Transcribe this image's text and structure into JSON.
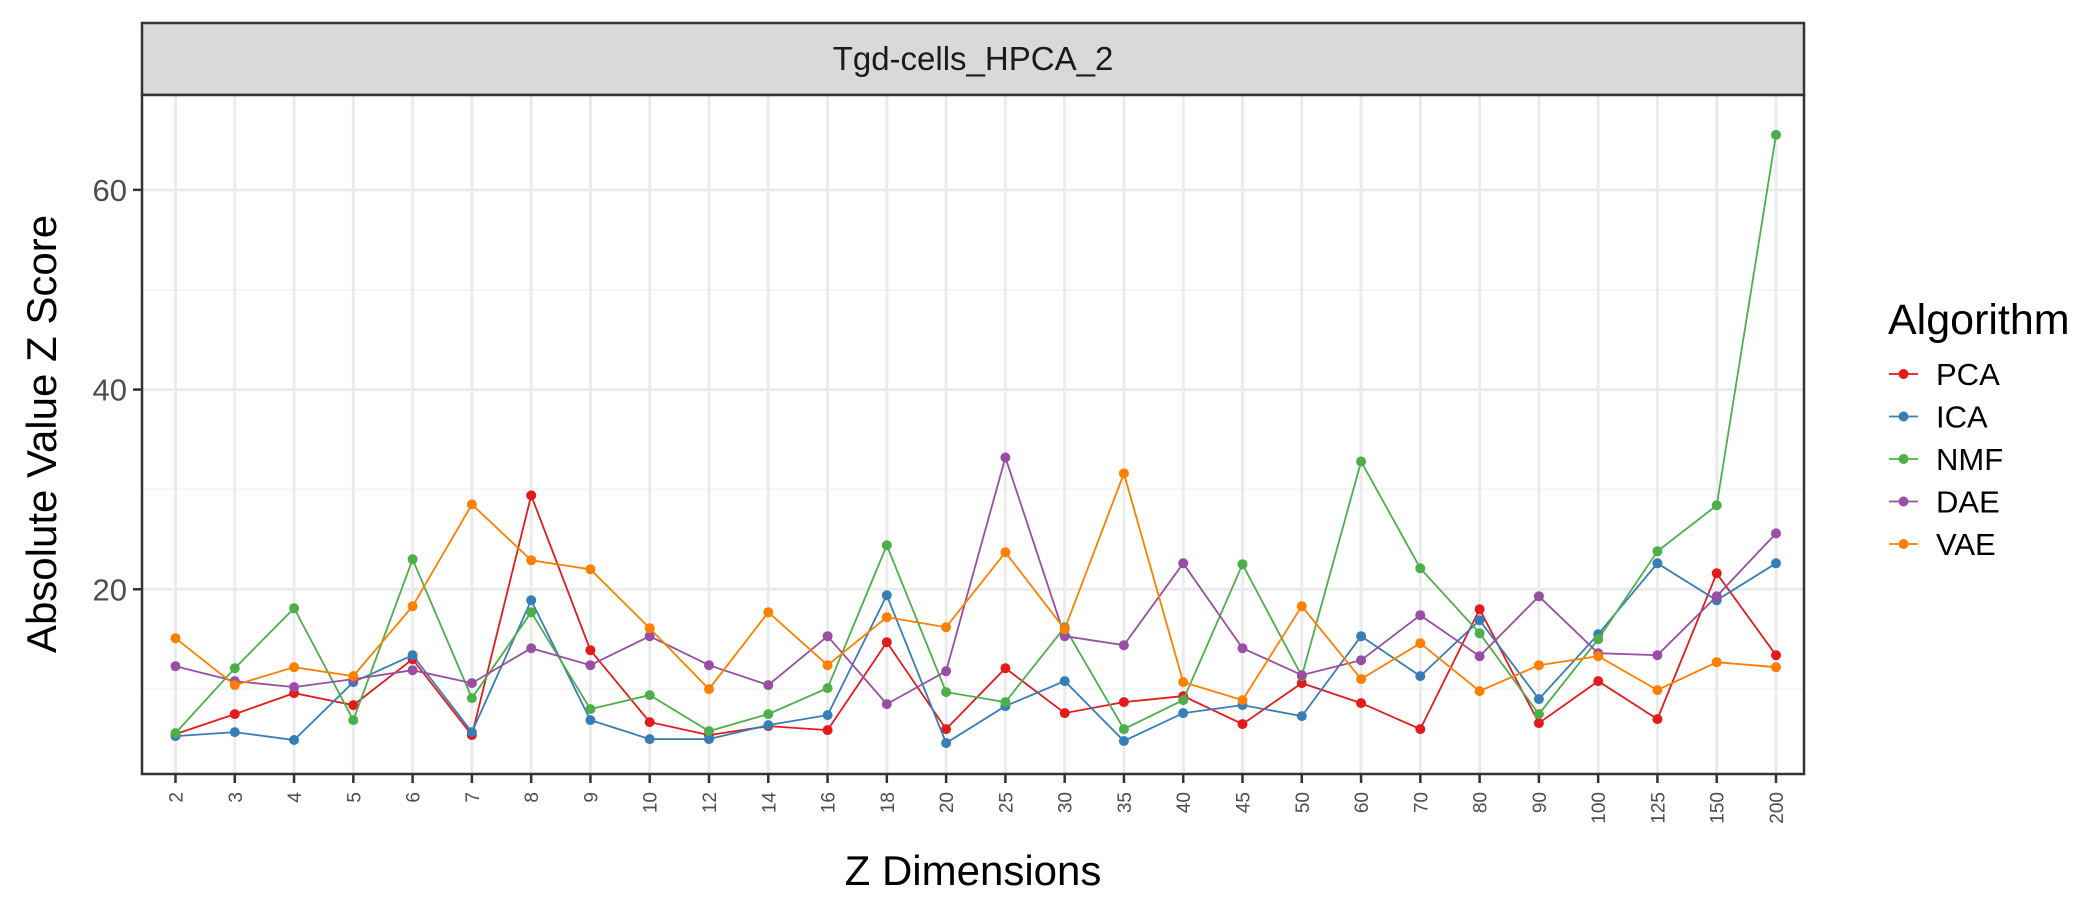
{
  "chart_data": {
    "type": "line",
    "title": "",
    "facet_title": "Tgd-cells_HPCA_2",
    "xlabel": "Z Dimensions",
    "ylabel": "Absolute Value Z Score",
    "categories": [
      "2",
      "3",
      "4",
      "5",
      "6",
      "7",
      "8",
      "9",
      "10",
      "12",
      "14",
      "16",
      "18",
      "20",
      "25",
      "30",
      "35",
      "40",
      "45",
      "50",
      "60",
      "70",
      "80",
      "90",
      "100",
      "125",
      "150",
      "200"
    ],
    "y_ticks": [
      20,
      40,
      60
    ],
    "ylim": [
      1.5,
      69.5
    ],
    "grid": true,
    "legend": {
      "title": "Algorithm",
      "position": "right"
    },
    "series": [
      {
        "name": "PCA",
        "color": "#e41a1c",
        "values": [
          5.5,
          7.5,
          9.6,
          8.4,
          13.0,
          5.4,
          29.4,
          13.9,
          6.7,
          5.4,
          6.3,
          5.9,
          14.7,
          6.0,
          12.1,
          7.6,
          8.7,
          9.3,
          6.5,
          10.6,
          8.6,
          6.0,
          18.0,
          6.6,
          10.8,
          7.0,
          21.6,
          13.4
        ]
      },
      {
        "name": "ICA",
        "color": "#377eb8",
        "values": [
          5.3,
          5.7,
          4.9,
          10.7,
          13.4,
          5.7,
          18.9,
          6.9,
          5.0,
          5.0,
          6.4,
          7.4,
          19.4,
          4.6,
          8.3,
          10.8,
          4.8,
          7.6,
          8.4,
          7.3,
          15.3,
          11.3,
          16.9,
          9.0,
          15.5,
          22.6,
          18.9,
          22.6
        ]
      },
      {
        "name": "NMF",
        "color": "#4daf4a",
        "values": [
          5.6,
          12.1,
          18.1,
          6.9,
          23.0,
          9.1,
          17.7,
          8.0,
          9.4,
          5.8,
          7.5,
          10.1,
          24.4,
          9.7,
          8.7,
          16.2,
          6.0,
          8.9,
          22.5,
          11.3,
          32.8,
          22.1,
          15.6,
          7.5,
          15.0,
          23.8,
          28.4,
          65.5
        ]
      },
      {
        "name": "DAE",
        "color": "#984ea3",
        "values": [
          12.3,
          10.8,
          10.2,
          11.0,
          11.9,
          10.6,
          14.1,
          12.4,
          15.3,
          12.4,
          10.4,
          15.3,
          8.5,
          11.8,
          33.2,
          15.3,
          14.4,
          22.6,
          14.1,
          11.4,
          12.9,
          17.4,
          13.3,
          19.3,
          13.6,
          13.4,
          19.3,
          25.6
        ]
      },
      {
        "name": "VAE",
        "color": "#ff7f00",
        "values": [
          15.1,
          10.4,
          12.2,
          11.3,
          18.3,
          28.5,
          22.9,
          22.0,
          16.1,
          10.0,
          17.7,
          12.4,
          17.2,
          16.2,
          23.7,
          16.0,
          31.6,
          10.7,
          8.9,
          18.3,
          11.0,
          14.6,
          9.8,
          12.4,
          13.3,
          9.9,
          12.7,
          12.2
        ]
      }
    ]
  }
}
